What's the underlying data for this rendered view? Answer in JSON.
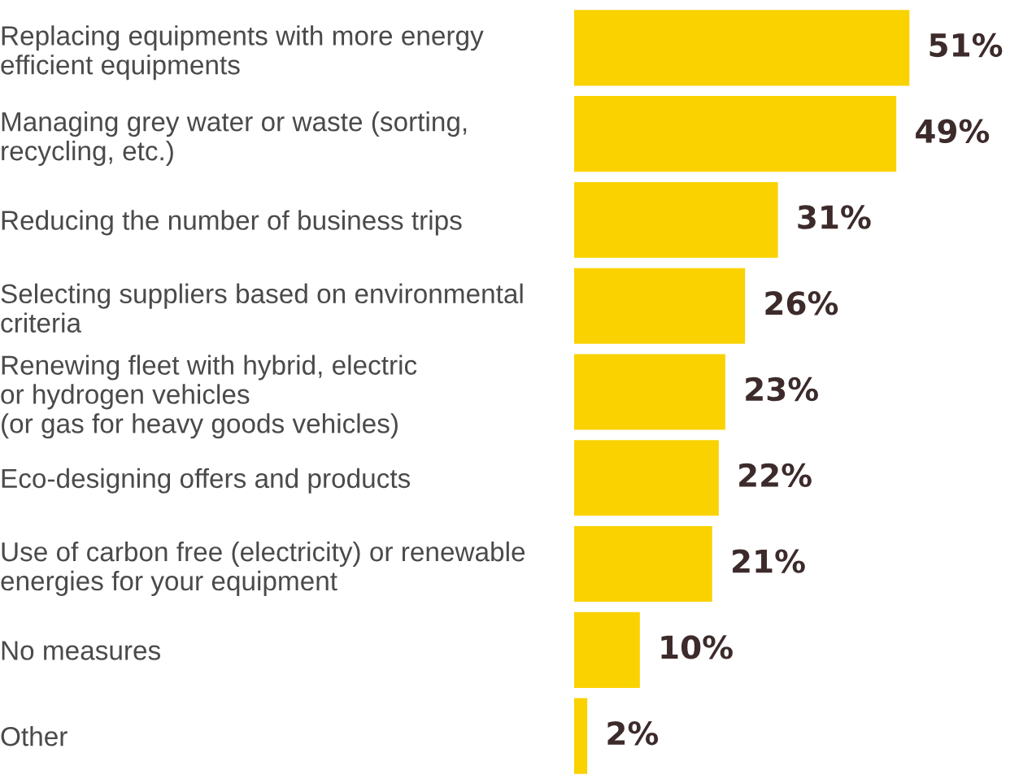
{
  "chart_data": {
    "type": "bar",
    "orientation": "horizontal",
    "categories": [
      "Replacing equipments with more energy\nefficient equipments",
      "Managing grey water or waste (sorting,\nrecycling, etc.)",
      "Reducing the number of business trips",
      "Selecting suppliers based on environmental\ncriteria",
      "Renewing fleet with hybrid, electric\nor hydrogen vehicles\n(or gas for heavy goods vehicles)",
      "Eco-designing offers and products",
      "Use of carbon free (electricity) or renewable\nenergies for your equipment",
      "No measures",
      "Other"
    ],
    "values": [
      51,
      49,
      31,
      26,
      23,
      22,
      21,
      10,
      2
    ],
    "value_labels": [
      "51%",
      "49%",
      "31%",
      "26%",
      "23%",
      "22%",
      "21%",
      "10%",
      "2%"
    ],
    "color": "#fad200",
    "grid": false,
    "legend": false
  }
}
